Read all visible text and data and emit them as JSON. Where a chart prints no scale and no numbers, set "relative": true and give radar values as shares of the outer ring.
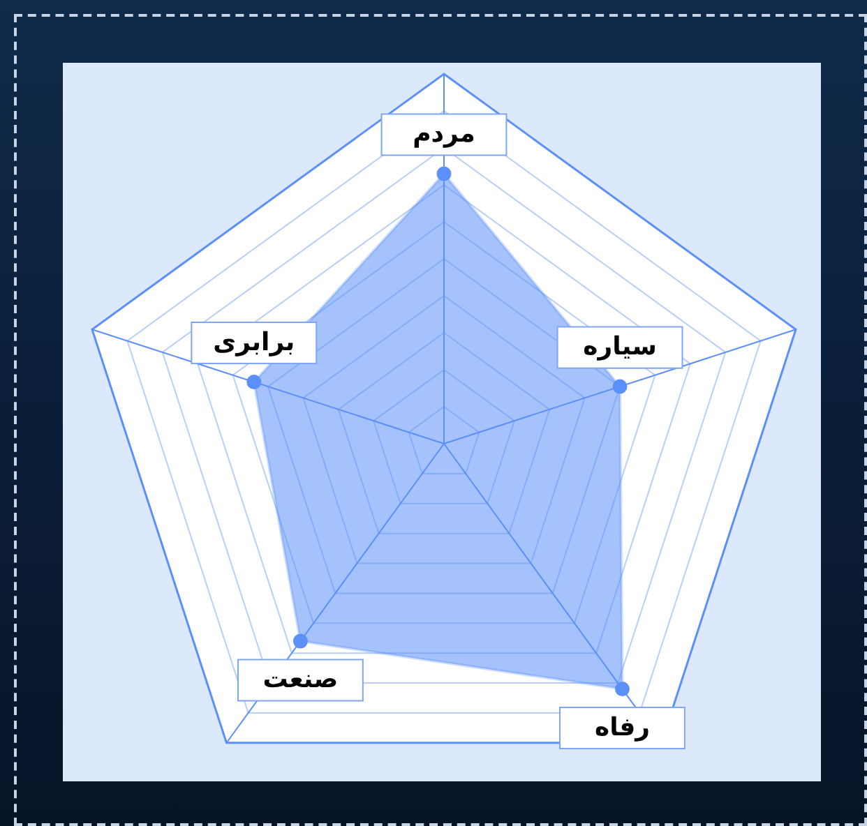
{
  "chart_data": {
    "type": "radar",
    "relative": true,
    "categories": [
      "مردم",
      "سیاره",
      "رفاه",
      "صنعت",
      "برابری"
    ],
    "series": [
      {
        "color": "#5b8ff9",
        "values": [
          0.73,
          0.5,
          0.82,
          0.66,
          0.54
        ]
      }
    ],
    "grid": true,
    "marker": "circle"
  }
}
